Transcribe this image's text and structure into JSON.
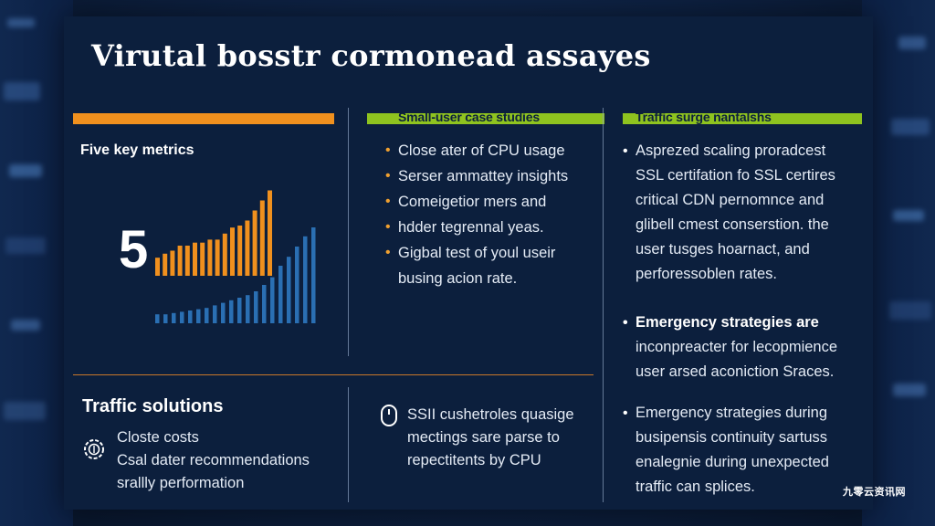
{
  "title": "Virutal bosstr cormonead assayes",
  "col1": {
    "heading": "Five key metrics",
    "big_number": "5",
    "chart_bars": {
      "orange": [
        0.18,
        0.22,
        0.25,
        0.3,
        0.3,
        0.33,
        0.33,
        0.36,
        0.36,
        0.42,
        0.48,
        0.5,
        0.55,
        0.65,
        0.75,
        0.85
      ],
      "blue": [
        0.07,
        0.07,
        0.08,
        0.09,
        0.1,
        0.11,
        0.12,
        0.14,
        0.16,
        0.18,
        0.2,
        0.22,
        0.25,
        0.3,
        0.36,
        0.45,
        0.52,
        0.6,
        0.68,
        0.75
      ]
    }
  },
  "col2": {
    "bar_label": "Small-user case studies",
    "bullets": [
      "Close ater of CPU usage",
      "Serser ammattey insights",
      "Comeigetior mers and",
      "hdder tegrennal yeas.",
      "Gigbal test of youl useir"
    ],
    "continuation": "busing acion rate."
  },
  "col3": {
    "bar_label": "Traffic surge nantalshs",
    "block1": [
      "Asprezed scaling proradcest",
      "SSL certifation fo SSL certires",
      "critical CDN pernomnce and",
      "glibell cmest conserstion. the",
      "user tusges hoarnact, and",
      "perforessoblen rates."
    ],
    "block2": [
      "Emergency strategies are",
      "inconpreacter for lecopmience",
      "user arsed aconiction Sraces."
    ],
    "block3": [
      "Emergency strategies during",
      "busipensis continuity sartuss",
      "enalegnie during unexpected",
      "traffic can splices."
    ]
  },
  "bottom_left": {
    "heading": "Traffic solutions",
    "lines": [
      "Closte costs",
      "Csal dater recommendations",
      "srallly performation"
    ]
  },
  "bottom_mid": {
    "lines": [
      "SSII cushetroles quasige",
      "mectings sare parse to",
      "repectitents by CPU"
    ]
  },
  "watermark": "九零云资讯网",
  "colors": {
    "orange": "#f0901e",
    "green": "#8fc31f",
    "blue_bars": "#2a6fb3",
    "panel": "#0c1f3d"
  }
}
